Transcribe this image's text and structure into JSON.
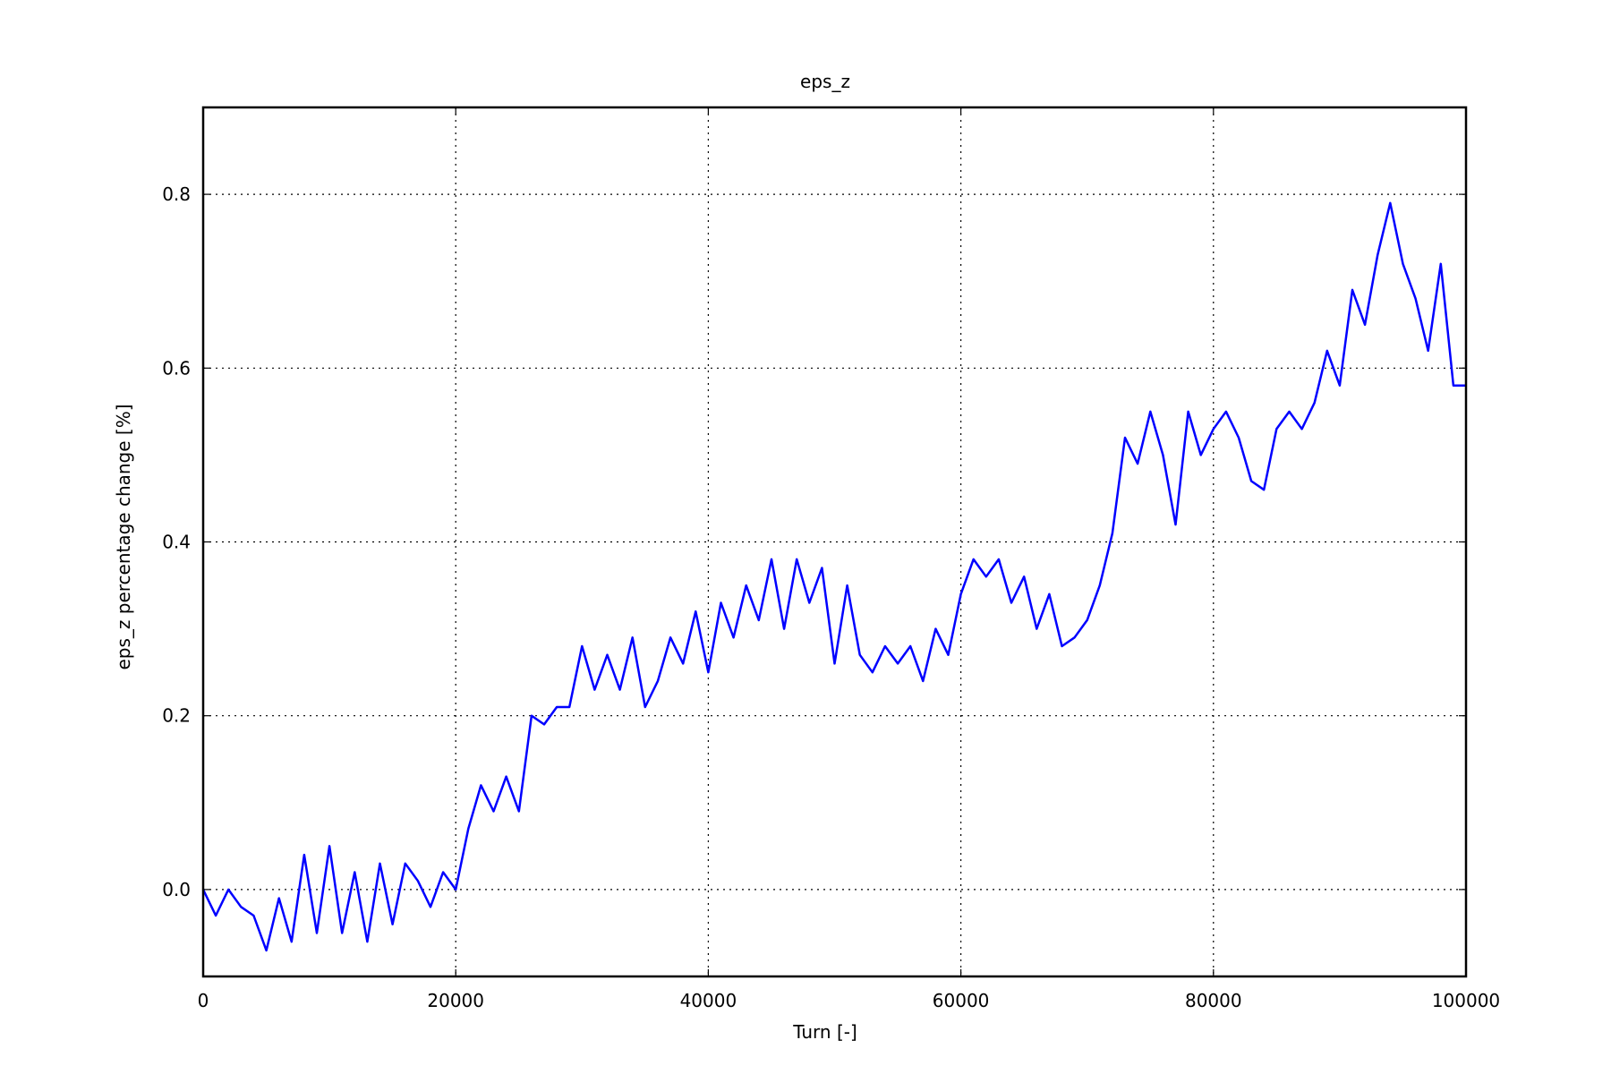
{
  "chart_data": {
    "type": "line",
    "title": "eps_z",
    "x_label": "Turn [-]",
    "y_label": "eps_z percentage change [%]",
    "x": [
      0,
      1000,
      2000,
      3000,
      4000,
      5000,
      6000,
      7000,
      8000,
      9000,
      10000,
      11000,
      12000,
      13000,
      14000,
      15000,
      16000,
      17000,
      18000,
      19000,
      20000,
      21000,
      22000,
      23000,
      24000,
      25000,
      26000,
      27000,
      28000,
      29000,
      30000,
      31000,
      32000,
      33000,
      34000,
      35000,
      36000,
      37000,
      38000,
      39000,
      40000,
      41000,
      42000,
      43000,
      44000,
      45000,
      46000,
      47000,
      48000,
      49000,
      50000,
      51000,
      52000,
      53000,
      54000,
      55000,
      56000,
      57000,
      58000,
      59000,
      60000,
      61000,
      62000,
      63000,
      64000,
      65000,
      66000,
      67000,
      68000,
      69000,
      70000,
      71000,
      72000,
      73000,
      74000,
      75000,
      76000,
      77000,
      78000,
      79000,
      80000,
      81000,
      82000,
      83000,
      84000,
      85000,
      86000,
      87000,
      88000,
      89000,
      90000,
      91000,
      92000,
      93000,
      94000,
      95000,
      96000,
      97000,
      98000,
      99000,
      100000
    ],
    "series": [
      {
        "name": "eps_z",
        "color": "#0000ff",
        "values": [
          0.0,
          -0.03,
          0.0,
          -0.02,
          -0.03,
          -0.07,
          -0.01,
          -0.06,
          0.04,
          -0.05,
          0.05,
          -0.05,
          0.02,
          -0.06,
          0.03,
          -0.04,
          0.03,
          0.01,
          -0.02,
          0.02,
          0.0,
          0.07,
          0.12,
          0.09,
          0.13,
          0.09,
          0.2,
          0.19,
          0.21,
          0.21,
          0.28,
          0.23,
          0.27,
          0.23,
          0.29,
          0.21,
          0.24,
          0.29,
          0.26,
          0.32,
          0.25,
          0.33,
          0.29,
          0.35,
          0.31,
          0.38,
          0.3,
          0.38,
          0.33,
          0.37,
          0.26,
          0.35,
          0.27,
          0.25,
          0.28,
          0.26,
          0.28,
          0.24,
          0.3,
          0.27,
          0.34,
          0.38,
          0.36,
          0.38,
          0.33,
          0.36,
          0.3,
          0.34,
          0.28,
          0.29,
          0.31,
          0.35,
          0.41,
          0.52,
          0.49,
          0.55,
          0.5,
          0.42,
          0.55,
          0.5,
          0.53,
          0.55,
          0.52,
          0.47,
          0.46,
          0.53,
          0.55,
          0.53,
          0.56,
          0.62,
          0.58,
          0.69,
          0.65,
          0.73,
          0.79,
          0.72,
          0.68,
          0.62,
          0.72,
          0.58,
          0.58
        ]
      }
    ],
    "xlim": [
      0,
      100000
    ],
    "xticks": [
      0,
      20000,
      40000,
      60000,
      80000,
      100000
    ],
    "ylim": [
      -0.1,
      0.9
    ],
    "yticks": [
      {
        "value": 0,
        "label": "0.0"
      },
      0.2,
      0.4,
      0.6,
      0.8
    ],
    "grid": true
  }
}
